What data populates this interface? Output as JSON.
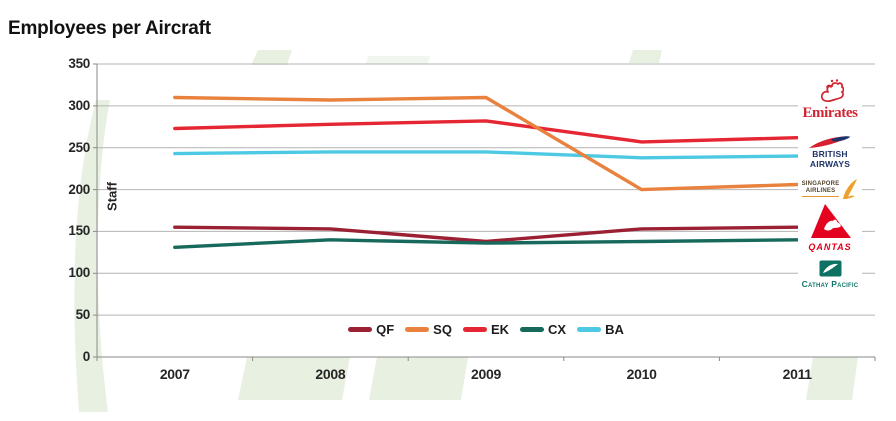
{
  "title": "Employees per Aircraft",
  "chart_data": {
    "type": "line",
    "title": "Employees per Aircraft",
    "ylabel": "Staff",
    "xlabel": "",
    "x": [
      2007,
      2008,
      2009,
      2010,
      2011
    ],
    "ylim": [
      0,
      350
    ],
    "ytick_step": 50,
    "yticks": [
      0,
      50,
      100,
      150,
      200,
      250,
      300,
      350
    ],
    "grid": true,
    "legend_position": "bottom-center",
    "series": [
      {
        "name": "QF",
        "color": "#9b2033",
        "z": 1,
        "values": [
          155,
          153,
          138,
          153,
          155
        ]
      },
      {
        "name": "SQ",
        "color": "#e8823e",
        "z": 5,
        "values": [
          310,
          307,
          310,
          200,
          206
        ]
      },
      {
        "name": "EK",
        "color": "#e52733",
        "z": 2,
        "values": [
          273,
          278,
          282,
          257,
          262
        ]
      },
      {
        "name": "CX",
        "color": "#17695c",
        "z": 3,
        "values": [
          131,
          140,
          136,
          138,
          140
        ]
      },
      {
        "name": "BA",
        "color": "#4ec9e4",
        "z": 4,
        "values": [
          243,
          245,
          245,
          238,
          240
        ]
      }
    ]
  },
  "logos": {
    "items": [
      {
        "id": "emirates",
        "label": "Emirates",
        "color": "#cf2533",
        "icon": "emirates-calligraphy-icon"
      },
      {
        "id": "british-airways",
        "line1": "BRITISH",
        "line2": "AIRWAYS",
        "color": "#1d3468",
        "icon": "ba-speedmarque-icon"
      },
      {
        "id": "singapore-airlines",
        "line1": "SINGAPORE",
        "line2": "AIRLINES",
        "color": "#53452f",
        "accent": "#e8962d",
        "icon": "sia-bird-icon"
      },
      {
        "id": "qantas",
        "label": "QANTAS",
        "color": "#e3001e",
        "icon": "qantas-kangaroo-icon"
      },
      {
        "id": "cathay-pacific",
        "label": "Cathay Pacific",
        "color": "#15776b",
        "icon": "cathay-brushwing-icon"
      }
    ]
  },
  "style": {
    "grid_color": "#b4b4b4",
    "axis_color": "#8a8a8a",
    "background_shape_color": "#e8f0e2"
  }
}
